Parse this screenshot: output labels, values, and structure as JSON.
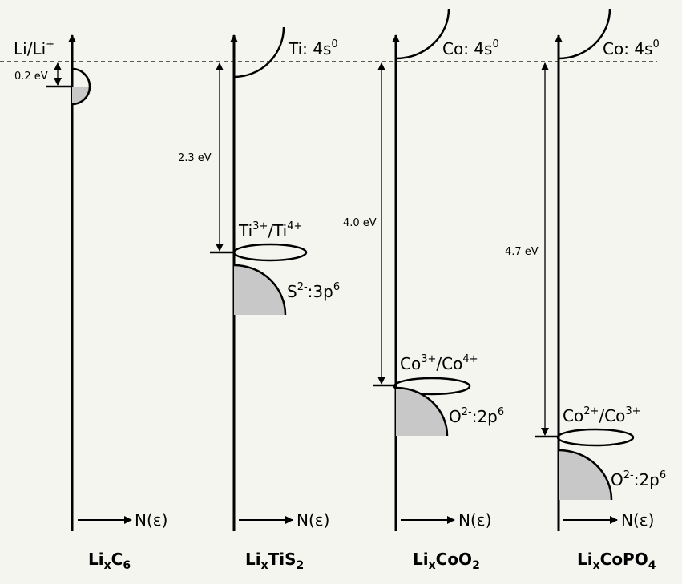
{
  "reference": {
    "text": "Li/Li",
    "sup": "+"
  },
  "colors": {
    "background": "#f5f5f0",
    "ink": "#000000",
    "filled_band": "#c8c8c8"
  },
  "panels": [
    {
      "id": "lic6",
      "compound": {
        "parts": [
          [
            "Li",
            ""
          ],
          [
            "x",
            "sub"
          ],
          [
            "C",
            ""
          ],
          [
            "6",
            "sub"
          ]
        ]
      },
      "gap": "0.2 eV",
      "axis_label": "N(ε)",
      "empty_band": null,
      "redox": null,
      "filled_band": null
    },
    {
      "id": "litis2",
      "compound": {
        "parts": [
          [
            "Li",
            ""
          ],
          [
            "x",
            "sub"
          ],
          [
            "TiS",
            ""
          ],
          [
            "2",
            "sub"
          ]
        ]
      },
      "gap": "2.3 eV",
      "axis_label": "N(ε)",
      "empty_band": {
        "parts": [
          [
            "Ti: 4s",
            ""
          ],
          [
            "0",
            "sup"
          ]
        ]
      },
      "redox": {
        "parts": [
          [
            "Ti",
            ""
          ],
          [
            "3+",
            "sup"
          ],
          [
            "/Ti",
            ""
          ],
          [
            "4+",
            "sup"
          ]
        ]
      },
      "filled_band": {
        "parts": [
          [
            "S",
            ""
          ],
          [
            "2-",
            "sup"
          ],
          [
            ":3p",
            ""
          ],
          [
            "6",
            "sup"
          ]
        ]
      }
    },
    {
      "id": "licoo2",
      "compound": {
        "parts": [
          [
            "Li",
            ""
          ],
          [
            "x",
            "sub"
          ],
          [
            "CoO",
            ""
          ],
          [
            "2",
            "sub"
          ]
        ]
      },
      "gap": "4.0 eV",
      "axis_label": "N(ε)",
      "empty_band": {
        "parts": [
          [
            "Co: 4s",
            ""
          ],
          [
            "0",
            "sup"
          ]
        ]
      },
      "redox": {
        "parts": [
          [
            "Co",
            ""
          ],
          [
            "3+",
            "sup"
          ],
          [
            "/Co",
            ""
          ],
          [
            "4+",
            "sup"
          ]
        ]
      },
      "filled_band": {
        "parts": [
          [
            "O",
            ""
          ],
          [
            "2-",
            "sup"
          ],
          [
            ":2p",
            ""
          ],
          [
            "6",
            "sup"
          ]
        ]
      }
    },
    {
      "id": "licopo4",
      "compound": {
        "parts": [
          [
            "Li",
            ""
          ],
          [
            "x",
            "sub"
          ],
          [
            "CoPO",
            ""
          ],
          [
            "4",
            "sub"
          ]
        ]
      },
      "gap": "4.7 eV",
      "axis_label": "N(ε)",
      "empty_band": {
        "parts": [
          [
            "Co: 4s",
            ""
          ],
          [
            "0",
            "sup"
          ]
        ]
      },
      "redox": {
        "parts": [
          [
            "Co",
            ""
          ],
          [
            "2+",
            "sup"
          ],
          [
            "/Co",
            ""
          ],
          [
            "3+",
            "sup"
          ]
        ]
      },
      "filled_band": {
        "parts": [
          [
            "O",
            ""
          ],
          [
            "2-",
            "sup"
          ],
          [
            ":2p",
            ""
          ],
          [
            "6",
            "sup"
          ]
        ]
      }
    }
  ]
}
